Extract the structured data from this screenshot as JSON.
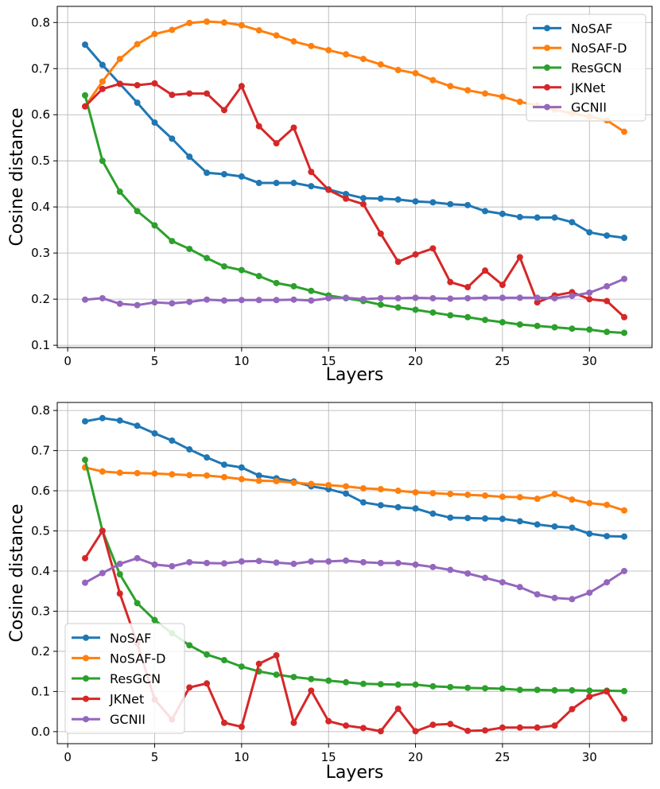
{
  "chart_data": [
    {
      "type": "line",
      "xlabel": "Layers",
      "ylabel": "Cosine distance",
      "xlim": [
        -0.6,
        33.6
      ],
      "ylim": [
        0.095,
        0.835
      ],
      "xticks": [
        "0",
        "5",
        "10",
        "15",
        "20",
        "25",
        "30"
      ],
      "yticks": [
        "0.1",
        "0.2",
        "0.3",
        "0.4",
        "0.5",
        "0.6",
        "0.7",
        "0.8"
      ],
      "grid": true,
      "legend_position": "top-right",
      "x": [
        1,
        2,
        3,
        4,
        5,
        6,
        7,
        8,
        9,
        10,
        11,
        12,
        13,
        14,
        15,
        16,
        17,
        18,
        19,
        20,
        21,
        22,
        23,
        24,
        25,
        26,
        27,
        28,
        29,
        30,
        31,
        32
      ],
      "series": [
        {
          "name": "NoSAF",
          "color": "#1f77b4",
          "values": [
            0.752,
            0.708,
            0.667,
            0.626,
            0.583,
            0.548,
            0.509,
            0.474,
            0.471,
            0.466,
            0.452,
            0.452,
            0.452,
            0.445,
            0.438,
            0.428,
            0.419,
            0.418,
            0.416,
            0.412,
            0.41,
            0.406,
            0.404,
            0.391,
            0.385,
            0.378,
            0.377,
            0.377,
            0.367,
            0.345,
            0.338,
            0.333
          ]
        },
        {
          "name": "NoSAF-D",
          "color": "#ff7f0e",
          "values": [
            0.618,
            0.672,
            0.721,
            0.753,
            0.775,
            0.784,
            0.799,
            0.802,
            0.8,
            0.794,
            0.783,
            0.772,
            0.759,
            0.749,
            0.74,
            0.731,
            0.721,
            0.709,
            0.697,
            0.69,
            0.675,
            0.662,
            0.653,
            0.646,
            0.639,
            0.628,
            0.62,
            0.611,
            0.603,
            0.596,
            0.588,
            0.563
          ]
        },
        {
          "name": "ResGCN",
          "color": "#2ca02c",
          "values": [
            0.642,
            0.5,
            0.433,
            0.391,
            0.36,
            0.326,
            0.309,
            0.289,
            0.271,
            0.263,
            0.25,
            0.235,
            0.228,
            0.218,
            0.208,
            0.202,
            0.196,
            0.188,
            0.182,
            0.177,
            0.171,
            0.165,
            0.161,
            0.155,
            0.15,
            0.145,
            0.142,
            0.139,
            0.136,
            0.134,
            0.129,
            0.127
          ]
        },
        {
          "name": "JKNet",
          "color": "#d62728",
          "values": [
            0.618,
            0.656,
            0.667,
            0.664,
            0.668,
            0.643,
            0.646,
            0.646,
            0.61,
            0.662,
            0.575,
            0.538,
            0.572,
            0.476,
            0.437,
            0.418,
            0.406,
            0.342,
            0.281,
            0.297,
            0.31,
            0.237,
            0.226,
            0.262,
            0.231,
            0.291,
            0.193,
            0.208,
            0.215,
            0.2,
            0.196,
            0.161
          ]
        },
        {
          "name": "GCNII",
          "color": "#9467bd",
          "values": [
            0.199,
            0.202,
            0.19,
            0.187,
            0.193,
            0.191,
            0.194,
            0.199,
            0.197,
            0.198,
            0.198,
            0.198,
            0.199,
            0.197,
            0.202,
            0.203,
            0.2,
            0.202,
            0.202,
            0.203,
            0.202,
            0.201,
            0.202,
            0.203,
            0.203,
            0.203,
            0.203,
            0.202,
            0.207,
            0.214,
            0.228,
            0.244
          ]
        }
      ]
    },
    {
      "type": "line",
      "xlabel": "Layers",
      "ylabel": "Cosine distance",
      "xlim": [
        -0.6,
        33.6
      ],
      "ylim": [
        -0.03,
        0.82
      ],
      "xticks": [
        "0",
        "5",
        "10",
        "15",
        "20",
        "25",
        "30"
      ],
      "yticks": [
        "0.0",
        "0.1",
        "0.2",
        "0.3",
        "0.4",
        "0.5",
        "0.6",
        "0.7",
        "0.8"
      ],
      "grid": true,
      "legend_position": "bottom-left",
      "x": [
        1,
        2,
        3,
        4,
        5,
        6,
        7,
        8,
        9,
        10,
        11,
        12,
        13,
        14,
        15,
        16,
        17,
        18,
        19,
        20,
        21,
        22,
        23,
        24,
        25,
        26,
        27,
        28,
        29,
        30,
        31,
        32
      ],
      "series": [
        {
          "name": "NoSAF",
          "color": "#1f77b4",
          "values": [
            0.773,
            0.781,
            0.775,
            0.762,
            0.743,
            0.725,
            0.703,
            0.683,
            0.665,
            0.658,
            0.638,
            0.631,
            0.623,
            0.611,
            0.604,
            0.593,
            0.571,
            0.564,
            0.559,
            0.556,
            0.543,
            0.533,
            0.532,
            0.531,
            0.53,
            0.524,
            0.516,
            0.511,
            0.508,
            0.493,
            0.487,
            0.486
          ]
        },
        {
          "name": "NoSAF-D",
          "color": "#ff7f0e",
          "values": [
            0.658,
            0.648,
            0.645,
            0.644,
            0.643,
            0.641,
            0.639,
            0.638,
            0.634,
            0.629,
            0.625,
            0.624,
            0.62,
            0.617,
            0.614,
            0.611,
            0.606,
            0.604,
            0.6,
            0.596,
            0.594,
            0.592,
            0.59,
            0.588,
            0.585,
            0.584,
            0.58,
            0.592,
            0.578,
            0.569,
            0.565,
            0.551
          ]
        },
        {
          "name": "ResGCN",
          "color": "#2ca02c",
          "values": [
            0.677,
            0.5,
            0.392,
            0.32,
            0.278,
            0.245,
            0.215,
            0.192,
            0.178,
            0.162,
            0.15,
            0.142,
            0.136,
            0.131,
            0.127,
            0.123,
            0.119,
            0.118,
            0.117,
            0.117,
            0.113,
            0.111,
            0.109,
            0.108,
            0.107,
            0.104,
            0.104,
            0.103,
            0.103,
            0.102,
            0.102,
            0.101
          ]
        },
        {
          "name": "JKNet",
          "color": "#d62728",
          "values": [
            0.432,
            0.5,
            0.344,
            0.22,
            0.08,
            0.03,
            0.11,
            0.12,
            0.022,
            0.012,
            0.169,
            0.19,
            0.022,
            0.102,
            0.026,
            0.015,
            0.009,
            0.001,
            0.057,
            0.001,
            0.017,
            0.019,
            0.002,
            0.003,
            0.01,
            0.01,
            0.01,
            0.015,
            0.056,
            0.087,
            0.1,
            0.032
          ]
        },
        {
          "name": "GCNII",
          "color": "#9467bd",
          "values": [
            0.371,
            0.395,
            0.418,
            0.432,
            0.416,
            0.412,
            0.422,
            0.42,
            0.419,
            0.424,
            0.425,
            0.421,
            0.418,
            0.424,
            0.424,
            0.426,
            0.422,
            0.42,
            0.42,
            0.416,
            0.41,
            0.403,
            0.394,
            0.383,
            0.372,
            0.36,
            0.342,
            0.333,
            0.33,
            0.346,
            0.372,
            0.4
          ]
        }
      ]
    }
  ]
}
